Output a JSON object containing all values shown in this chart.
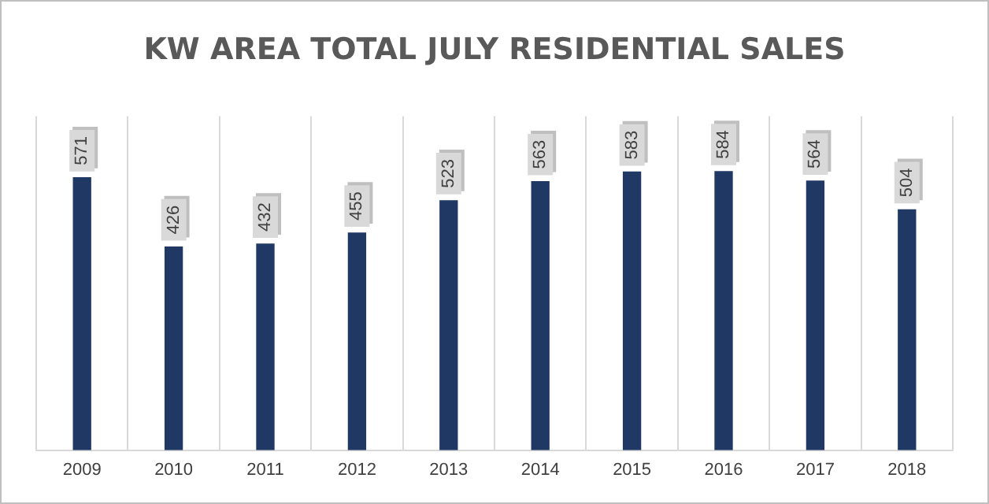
{
  "chart_data": {
    "type": "bar",
    "title": "KW AREA TOTAL JULY RESIDENTIAL SALES",
    "categories": [
      "2009",
      "2010",
      "2011",
      "2012",
      "2013",
      "2014",
      "2015",
      "2016",
      "2017",
      "2018"
    ],
    "values": [
      571,
      426,
      432,
      455,
      523,
      563,
      583,
      584,
      564,
      504
    ],
    "color": "#203864",
    "ylim": [
      0,
      700
    ],
    "grid": "x",
    "tick_labels": "x",
    "data_labels": true
  }
}
